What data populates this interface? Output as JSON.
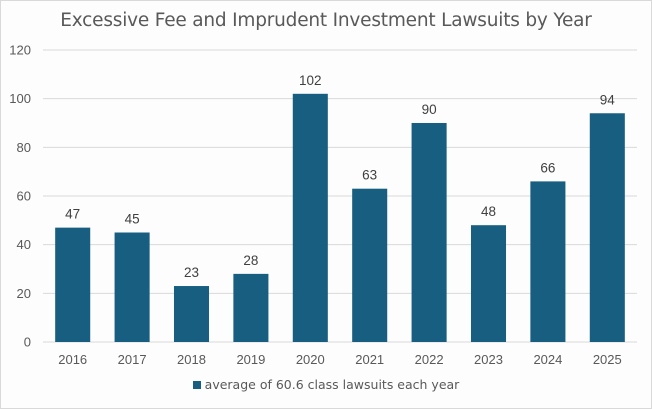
{
  "chart_data": {
    "type": "bar",
    "title": "Excessive Fee and Imprudent Investment Lawsuits by Year",
    "xlabel": "",
    "ylabel": "",
    "categories": [
      "2016",
      "2017",
      "2018",
      "2019",
      "2020",
      "2021",
      "2022",
      "2023",
      "2024",
      "2025"
    ],
    "series": [
      {
        "name": "average of 60.6 class lawsuits each year",
        "values": [
          47,
          45,
          23,
          28,
          102,
          63,
          90,
          48,
          66,
          94
        ],
        "color": "#175e80"
      }
    ],
    "ylim": [
      0,
      120
    ],
    "yticks": [
      0,
      20,
      40,
      60,
      80,
      100,
      120
    ],
    "grid": true,
    "data_labels": true,
    "legend": "bottom-center"
  }
}
